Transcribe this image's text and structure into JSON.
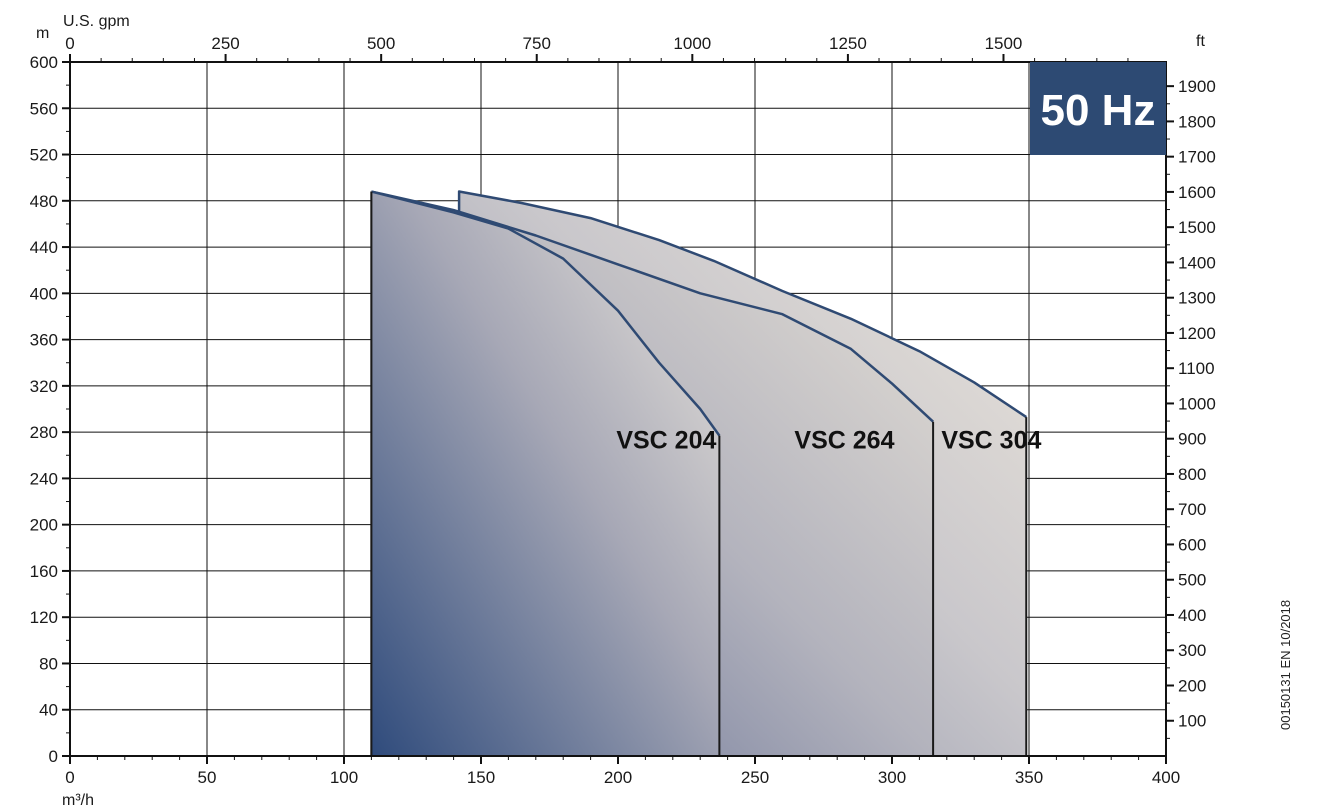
{
  "chart_data": {
    "type": "area",
    "x_axis": {
      "label": "m³/h",
      "min": 0,
      "max": 400,
      "ticks": [
        0,
        50,
        100,
        150,
        200,
        250,
        300,
        350,
        400
      ]
    },
    "x_axis_top": {
      "label": "U.S. gpm",
      "ticks": [
        0,
        250,
        500,
        750,
        1000,
        1250,
        1500
      ]
    },
    "y_axis": {
      "label": "m",
      "min": 0,
      "max": 600,
      "ticks": [
        0,
        40,
        80,
        120,
        160,
        200,
        240,
        280,
        320,
        360,
        400,
        440,
        480,
        520,
        560,
        600
      ]
    },
    "y_axis_right": {
      "label": "ft",
      "ticks": [
        100,
        200,
        300,
        400,
        500,
        600,
        700,
        800,
        900,
        1000,
        1100,
        1200,
        1300,
        1400,
        1500,
        1600,
        1700,
        1800,
        1900
      ]
    },
    "grid": true,
    "frequency_badge": "50 Hz",
    "series": [
      {
        "name": "VSC 304",
        "points": [
          [
            142,
            468
          ],
          [
            142,
            488
          ],
          [
            165,
            478
          ],
          [
            190,
            465
          ],
          [
            215,
            446
          ],
          [
            235,
            428
          ],
          [
            260,
            402
          ],
          [
            285,
            378
          ],
          [
            310,
            350
          ],
          [
            330,
            323
          ],
          [
            349,
            293
          ],
          [
            349,
            0
          ]
        ]
      },
      {
        "name": "VSC 264",
        "points": [
          [
            110,
            488
          ],
          [
            140,
            472
          ],
          [
            170,
            450
          ],
          [
            200,
            425
          ],
          [
            230,
            400
          ],
          [
            260,
            382
          ],
          [
            285,
            352
          ],
          [
            300,
            322
          ],
          [
            315,
            289
          ],
          [
            315,
            0
          ]
        ]
      },
      {
        "name": "VSC 204",
        "points": [
          [
            110,
            488
          ],
          [
            140,
            470
          ],
          [
            160,
            456
          ],
          [
            180,
            430
          ],
          [
            200,
            385
          ],
          [
            215,
            340
          ],
          [
            230,
            300
          ],
          [
            237,
            277
          ],
          [
            237,
            0
          ]
        ]
      }
    ],
    "document_code": "00150131 EN 10/2018"
  }
}
